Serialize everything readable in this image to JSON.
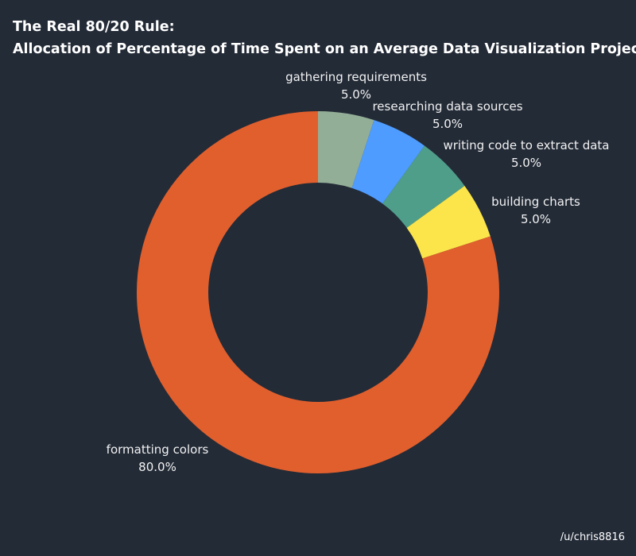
{
  "chart_data": {
    "type": "pie",
    "title": "The Real 80/20 Rule:",
    "subtitle": "Allocation of Percentage of Time Spent on an Average Data Visualization Project",
    "categories": [
      "gathering requirements",
      "researching data sources",
      "writing code to extract data",
      "building charts",
      "formatting colors"
    ],
    "values": [
      5.0,
      5.0,
      5.0,
      5.0,
      80.0
    ],
    "value_labels": [
      "5.0%",
      "5.0%",
      "5.0%",
      "5.0%",
      "80.0%"
    ],
    "colors": [
      "#93ae96",
      "#4e9cff",
      "#4f9e8a",
      "#fce54a",
      "#e15f2d"
    ],
    "donut": true,
    "start_angle": "12 o'clock",
    "direction": "clockwise",
    "legend": "none"
  },
  "credit": "/u/chris8816",
  "background_color": "#232b37"
}
